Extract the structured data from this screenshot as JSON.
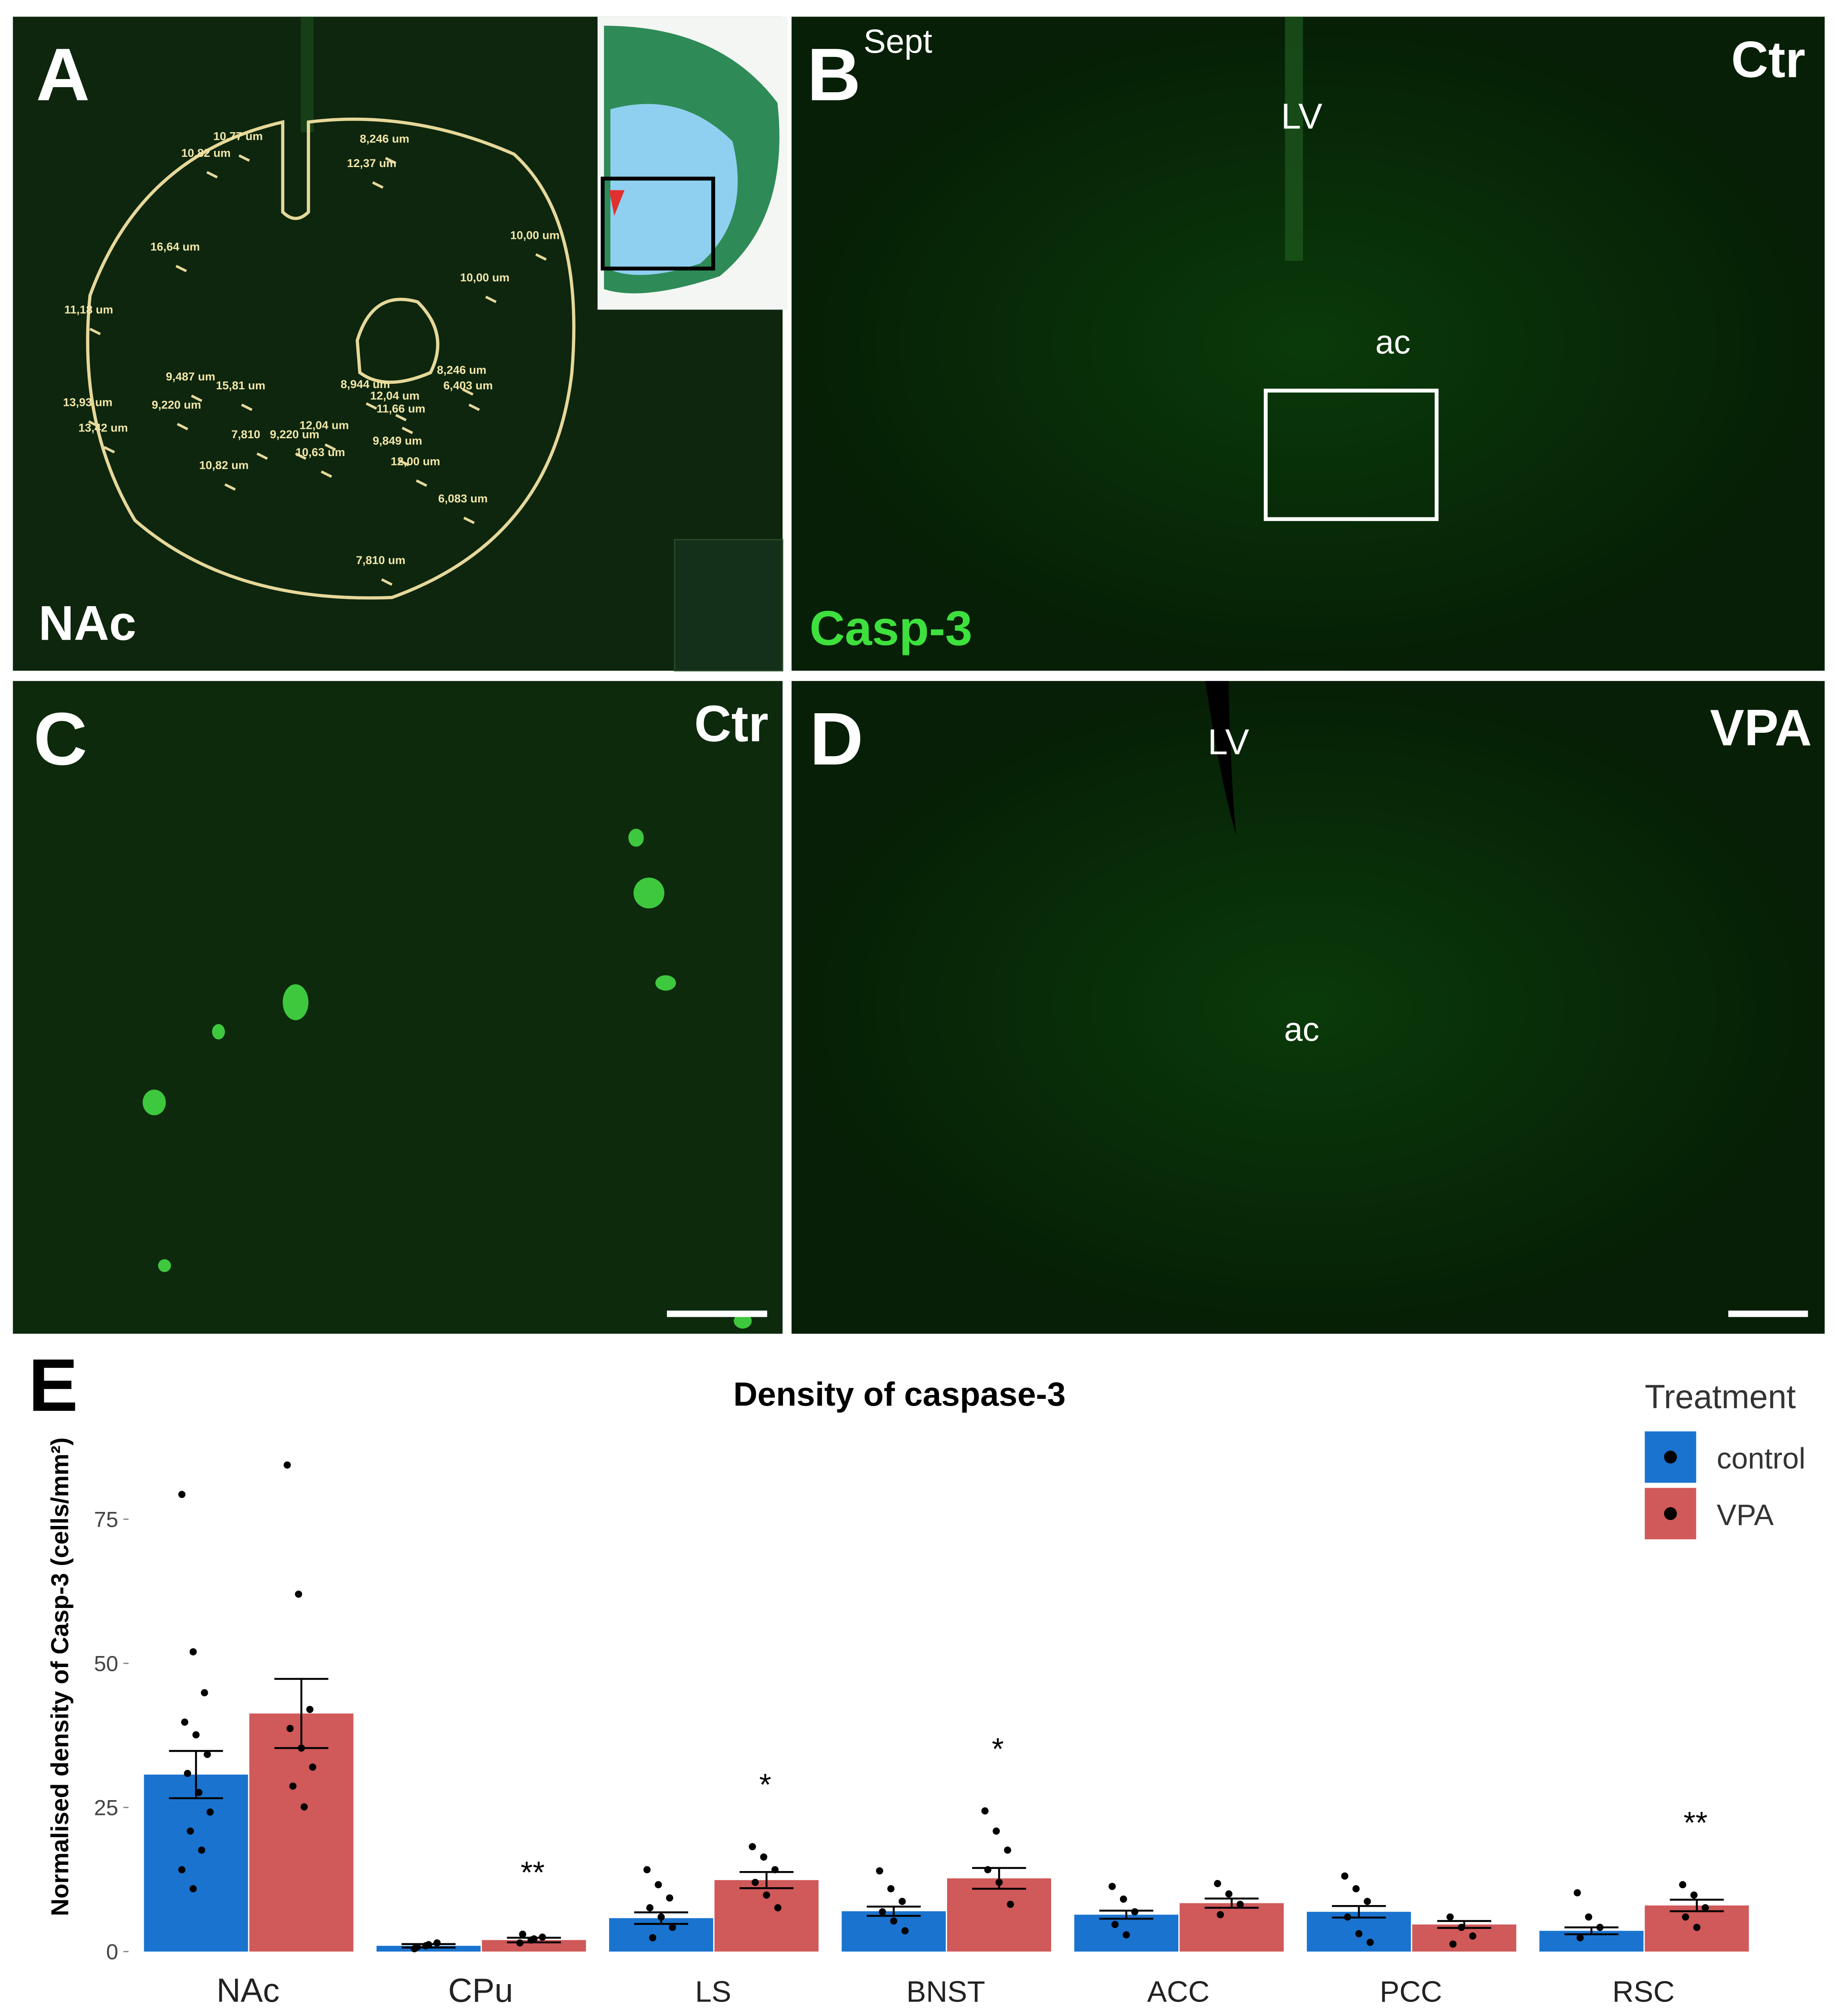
{
  "panels": {
    "A": {
      "letter": "A",
      "region": "NAc",
      "measurements": [
        "10,77 um",
        "10,82 um",
        "8,246 um",
        "12,37 um",
        "16,64 um",
        "10,00 um",
        "10,00 um",
        "11,18 um",
        "9,487 um",
        "15,81 um",
        "8,944 um",
        "8,246 um",
        "6,403 um",
        "13,93 um",
        "9,220 um",
        "12,04 um",
        "11,66 um",
        "13,42 um",
        "7,810",
        "9,220 um",
        "12,04 um",
        "9,849 um",
        "12,00 um",
        "10,63 um",
        "10,82 um",
        "6,083 um",
        "7,810 um"
      ]
    },
    "B": {
      "letter": "B",
      "superscript": "Sept",
      "group": "Ctr",
      "lv": "LV",
      "ac": "ac",
      "stain": "Casp-3"
    },
    "C": {
      "letter": "C",
      "group": "Ctr"
    },
    "D": {
      "letter": "D",
      "group": "VPA",
      "lv": "LV",
      "ac": "ac"
    },
    "E": {
      "letter": "E"
    }
  },
  "chart_data": {
    "type": "bar",
    "title": "Density of caspase-3",
    "y_label": "Normalised density of Casp-3 (cells/mm²)",
    "categories": [
      "NAc",
      "CPu",
      "LS",
      "BNST",
      "ACC",
      "PCC",
      "RSC"
    ],
    "series": [
      {
        "name": "control",
        "color": "#1a73cf",
        "values": [
          30.7,
          1,
          5.8,
          7,
          6.4,
          6.9,
          3.6
        ],
        "errors": [
          4.1,
          0.3,
          1,
          0.8,
          0.7,
          1,
          0.6
        ],
        "points": [
          [
            79.3,
            52,
            44.9,
            39.8,
            37.6,
            34.2,
            30.9,
            27.6,
            24.2,
            20.9,
            17.6,
            14.2,
            10.9
          ],
          [
            0.5,
            1,
            1.5,
            0.8,
            1.2
          ],
          [
            14.2,
            11.6,
            9.3,
            7.6,
            6,
            4.2,
            2.4
          ],
          [
            14,
            10.9,
            8.7,
            6.9,
            5.3,
            3.6
          ],
          [
            11.3,
            9.1,
            6.9,
            4.7,
            2.9
          ],
          [
            13.1,
            10.9,
            8.7,
            6,
            3.1,
            1.6
          ],
          [
            10.2,
            6,
            4.2,
            2.4
          ]
        ]
      },
      {
        "name": "VPA",
        "color": "#d0595a",
        "values": [
          41.3,
          2,
          12.4,
          12.7,
          8.4,
          4.7,
          8
        ],
        "errors": [
          6,
          0.4,
          1.4,
          1.8,
          0.8,
          0.6,
          1
        ],
        "points": [
          [
            84.4,
            62,
            42,
            38.7,
            35.3,
            32,
            28.7,
            25.1
          ],
          [
            1.5,
            2,
            2.5,
            3,
            2.2
          ],
          [
            18.2,
            16.4,
            14.2,
            12,
            9.8,
            7.6
          ],
          [
            24.4,
            20.9,
            17.6,
            14.2,
            12,
            8.2
          ],
          [
            11.8,
            10,
            8.2,
            6.4
          ],
          [
            6,
            4.2,
            2.7,
            1.3
          ],
          [
            11.6,
            9.8,
            7.6,
            6,
            4.2
          ]
        ]
      }
    ],
    "significance": [
      null,
      "**",
      "*",
      "*",
      null,
      null,
      "**"
    ],
    "ylim": [
      -0.7,
      96.7
    ],
    "yticks": [
      0,
      25,
      50,
      75
    ],
    "legend_title": "Treatment",
    "legend": "top-right",
    "grid": false
  }
}
